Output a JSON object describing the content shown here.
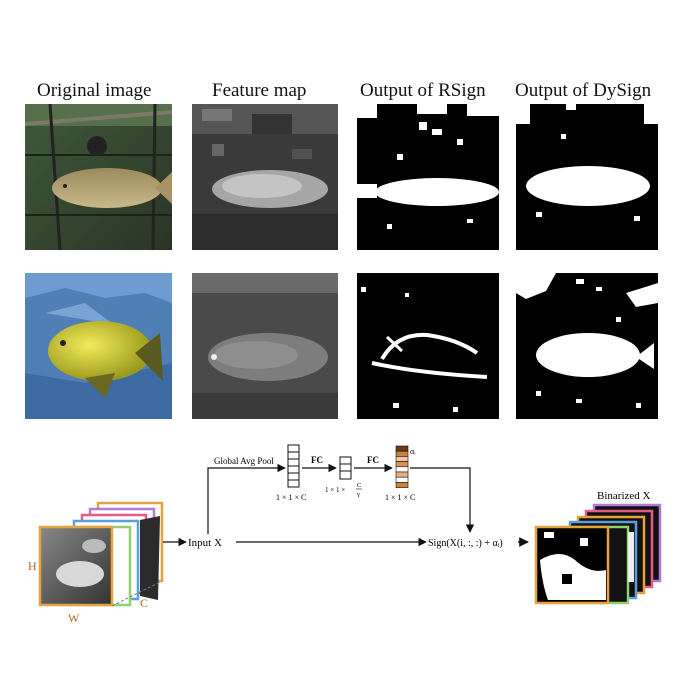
{
  "columns": {
    "original": "Original image",
    "feature": "Feature map",
    "rsign": "Output of RSign",
    "dysign": "Output of DySign"
  },
  "diagram": {
    "pool_label": "Global Avg Pool",
    "fc1_label": "FC",
    "fc2_label": "FC",
    "dim1": "1 × 1 × C",
    "dim2_prefix": "1 × 1 ×",
    "dim2_num": "C",
    "dim2_den": "γ",
    "dim3": "1 × 1 × C",
    "alpha": "αᵢ",
    "input_label": "Input X",
    "sign_label": "Sign(X(i, :, :) + αᵢ)",
    "output_label": "Binarized X",
    "axis_h": "H",
    "axis_w": "W",
    "axis_c": "C"
  },
  "colors": {
    "stack_frames": [
      "#e6a23c",
      "#8fd16a",
      "#5aa0e0",
      "#e65a8a",
      "#b07ad8",
      "#e6a23c"
    ],
    "alpha_vector": [
      "#6b3a1e",
      "#c8823c",
      "#f0c8a0",
      "#d9925a",
      "#ffffff",
      "#e8b080",
      "#ffffff",
      "#c8823c"
    ]
  }
}
